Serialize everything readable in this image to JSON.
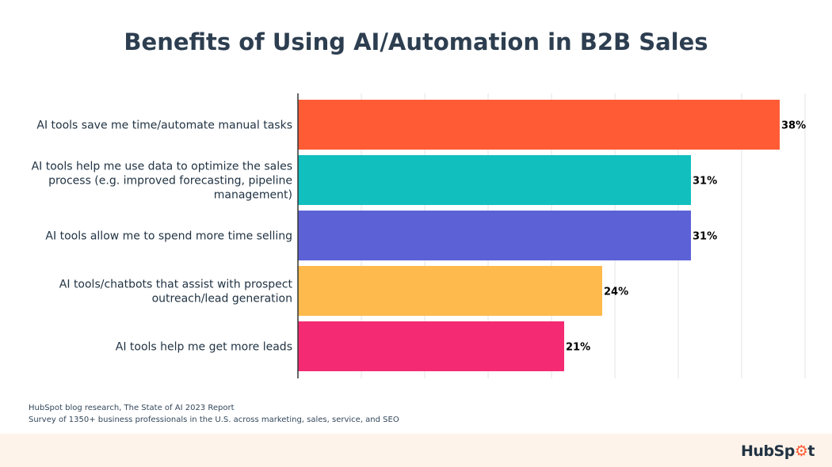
{
  "chart_data": {
    "type": "bar",
    "orientation": "horizontal",
    "title": "Benefits of Using AI/Automation in B2B Sales",
    "categories": [
      [
        "AI tools save me time/automate manual tasks"
      ],
      [
        "AI tools help me use data to optimize the sales",
        "process (e.g. improved forecasting, pipeline",
        "management)"
      ],
      [
        "AI tools allow me to spend more time selling"
      ],
      [
        "AI tools/chatbots that assist with prospect",
        "outreach/lead generation"
      ],
      [
        "AI tools help me get more leads"
      ]
    ],
    "values": [
      38,
      31,
      31,
      24,
      21
    ],
    "data_labels": [
      "38%",
      "31%",
      "31%",
      "24%",
      "21%"
    ],
    "colors": [
      "#ff5c35",
      "#12bfbf",
      "#5c62d6",
      "#ffba4d",
      "#f42a73"
    ],
    "xlim": [
      0,
      40
    ],
    "grid": true,
    "grid_step": 5
  },
  "footer": {
    "source_line1": "HubSpot blog research, The State of AI 2023 Report",
    "source_line2": "Survey of 1350+ business professionals in the U.S. across marketing, sales, service, and SEO",
    "logo": "HubSpot"
  }
}
